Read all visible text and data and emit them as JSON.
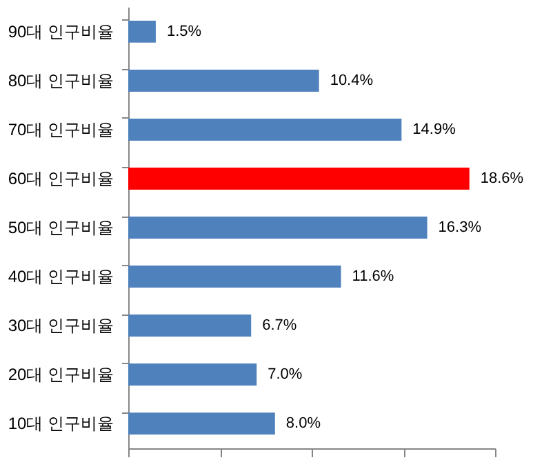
{
  "chart_data": {
    "type": "bar",
    "orientation": "horizontal",
    "categories": [
      "90대 인구비율",
      "80대 인구비율",
      "70대 인구비율",
      "60대 인구비율",
      "50대 인구비율",
      "40대 인구비율",
      "30대 인구비율",
      "20대 인구비율",
      "10대 인구비율"
    ],
    "values": [
      1.5,
      10.4,
      14.9,
      18.6,
      16.3,
      11.6,
      6.7,
      7.0,
      8.0
    ],
    "value_labels": [
      "1.5%",
      "10.4%",
      "14.9%",
      "18.6%",
      "16.3%",
      "11.6%",
      "6.7%",
      "7.0%",
      "8.0%"
    ],
    "colors": [
      "#4f81bd",
      "#4f81bd",
      "#4f81bd",
      "#ff0000",
      "#4f81bd",
      "#4f81bd",
      "#4f81bd",
      "#4f81bd",
      "#4f81bd"
    ],
    "xlim": [
      0,
      20
    ],
    "xticks": [
      {
        "value": 0,
        "label": null
      },
      {
        "value": 5,
        "label": null
      },
      {
        "value": 10,
        "label": null
      },
      {
        "value": 15,
        "label": null
      },
      {
        "value": 20,
        "label": null
      }
    ],
    "tick_labels": "y",
    "grid": false
  }
}
